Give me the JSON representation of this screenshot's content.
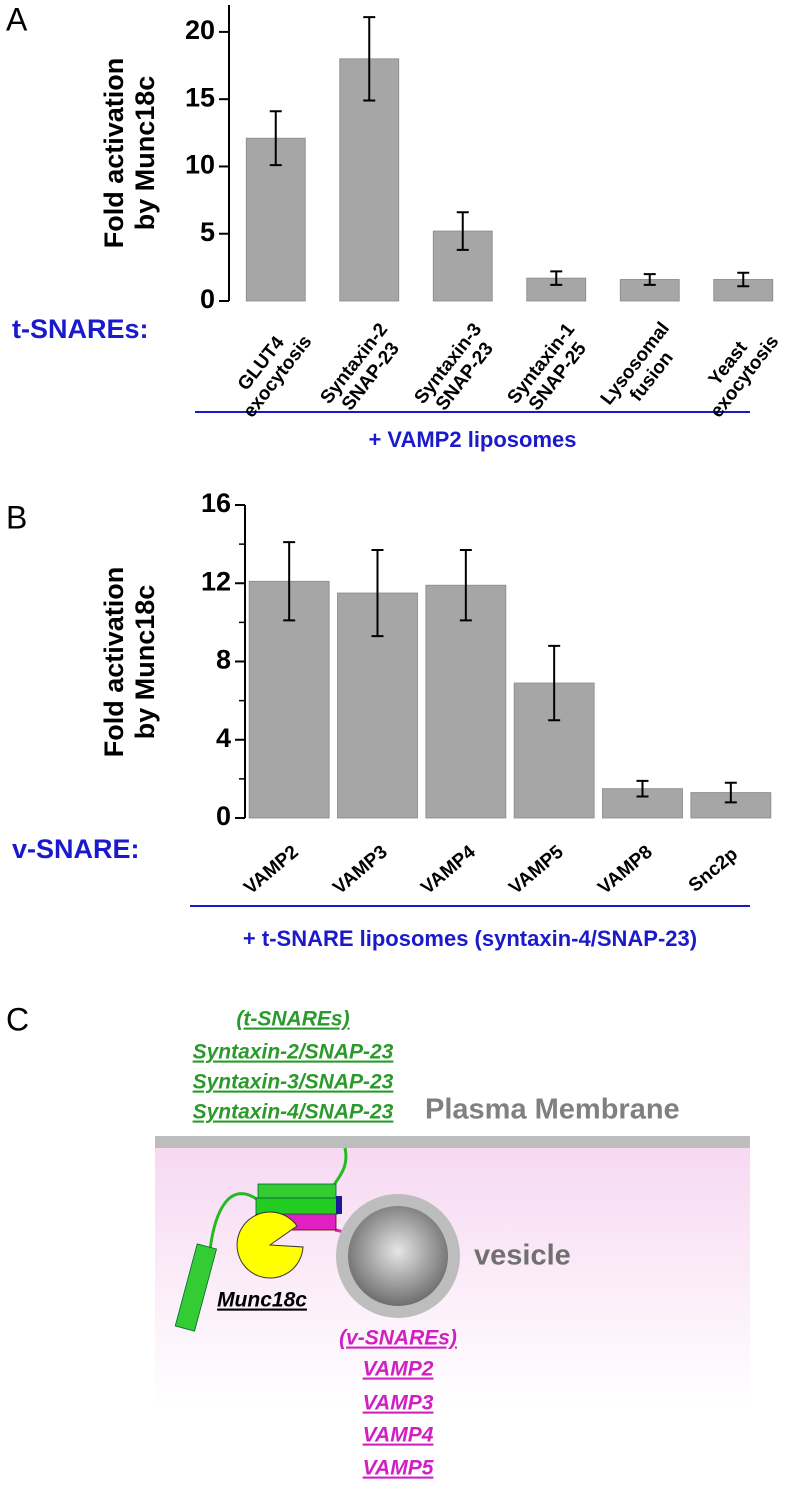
{
  "chart_data": [
    {
      "type": "bar",
      "panel_label": "A",
      "y_label": "Fold activation\nby Munc18c",
      "x_prefix_label": "t-SNAREs:",
      "x_group_label": "+ VAMP2 liposomes",
      "categories": [
        "GLUT4\nexocytosis",
        "Syntaxin-2\nSNAP-23",
        "Syntaxin-3\nSNAP-23",
        "Syntaxin-1\nSNAP-25",
        "Lysosomal\nfusion",
        "Yeast\nexocytosis"
      ],
      "values": [
        12.1,
        18.0,
        5.2,
        1.7,
        1.6,
        1.6
      ],
      "errors": [
        2.0,
        3.1,
        1.4,
        0.5,
        0.4,
        0.5
      ],
      "color": "#a6a6a6",
      "label_color": "#1a1acc",
      "ylim": [
        0,
        22
      ],
      "yticks": [
        0,
        5,
        10,
        15,
        20
      ]
    },
    {
      "type": "bar",
      "panel_label": "B",
      "y_label": "Fold activation\nby Munc18c",
      "x_prefix_label": "v-SNARE:",
      "x_group_label": "+ t-SNARE liposomes (syntaxin-4/SNAP-23)",
      "categories": [
        "VAMP2",
        "VAMP3",
        "VAMP4",
        "VAMP5",
        "VAMP8",
        "Snc2p"
      ],
      "values": [
        12.1,
        11.5,
        11.9,
        6.9,
        1.5,
        1.3
      ],
      "errors": [
        2.0,
        2.2,
        1.8,
        1.9,
        0.4,
        0.5
      ],
      "color": "#a6a6a6",
      "label_color": "#1a1acc",
      "ylim": [
        0,
        16
      ],
      "yticks": [
        0,
        4,
        8,
        12,
        16
      ],
      "minor_yticks": [
        2,
        6,
        10,
        14
      ]
    }
  ],
  "diagram": {
    "panel_label": "C",
    "t_snares": [
      "(t-SNAREs)",
      "Syntaxin-2/SNAP-23",
      "Syntaxin-3/SNAP-23",
      "Syntaxin-4/SNAP-23"
    ],
    "membrane_label": "Plasma Membrane",
    "vesicle_label": "vesicle",
    "munc_label": "Munc18c",
    "v_snares": [
      "(v-SNAREs)",
      "VAMP2",
      "VAMP3",
      "VAMP4",
      "VAMP5"
    ]
  }
}
